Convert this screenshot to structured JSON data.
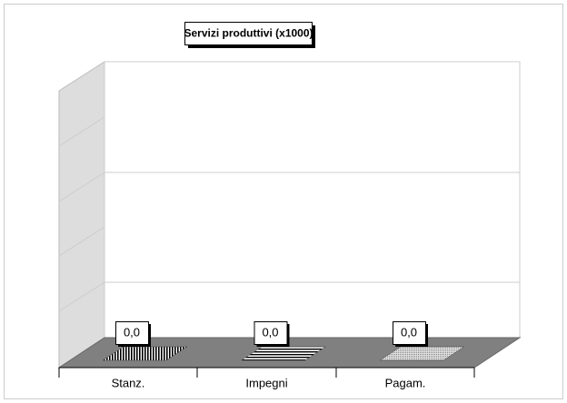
{
  "chart_data": {
    "type": "bar3d",
    "title": "Servizi produttivi (x1000)",
    "categories": [
      "Stanz.",
      "Impegni",
      "Pagam."
    ],
    "values": [
      0,
      0,
      0
    ],
    "value_labels": [
      "0,0",
      "0,0",
      "0,0"
    ]
  }
}
